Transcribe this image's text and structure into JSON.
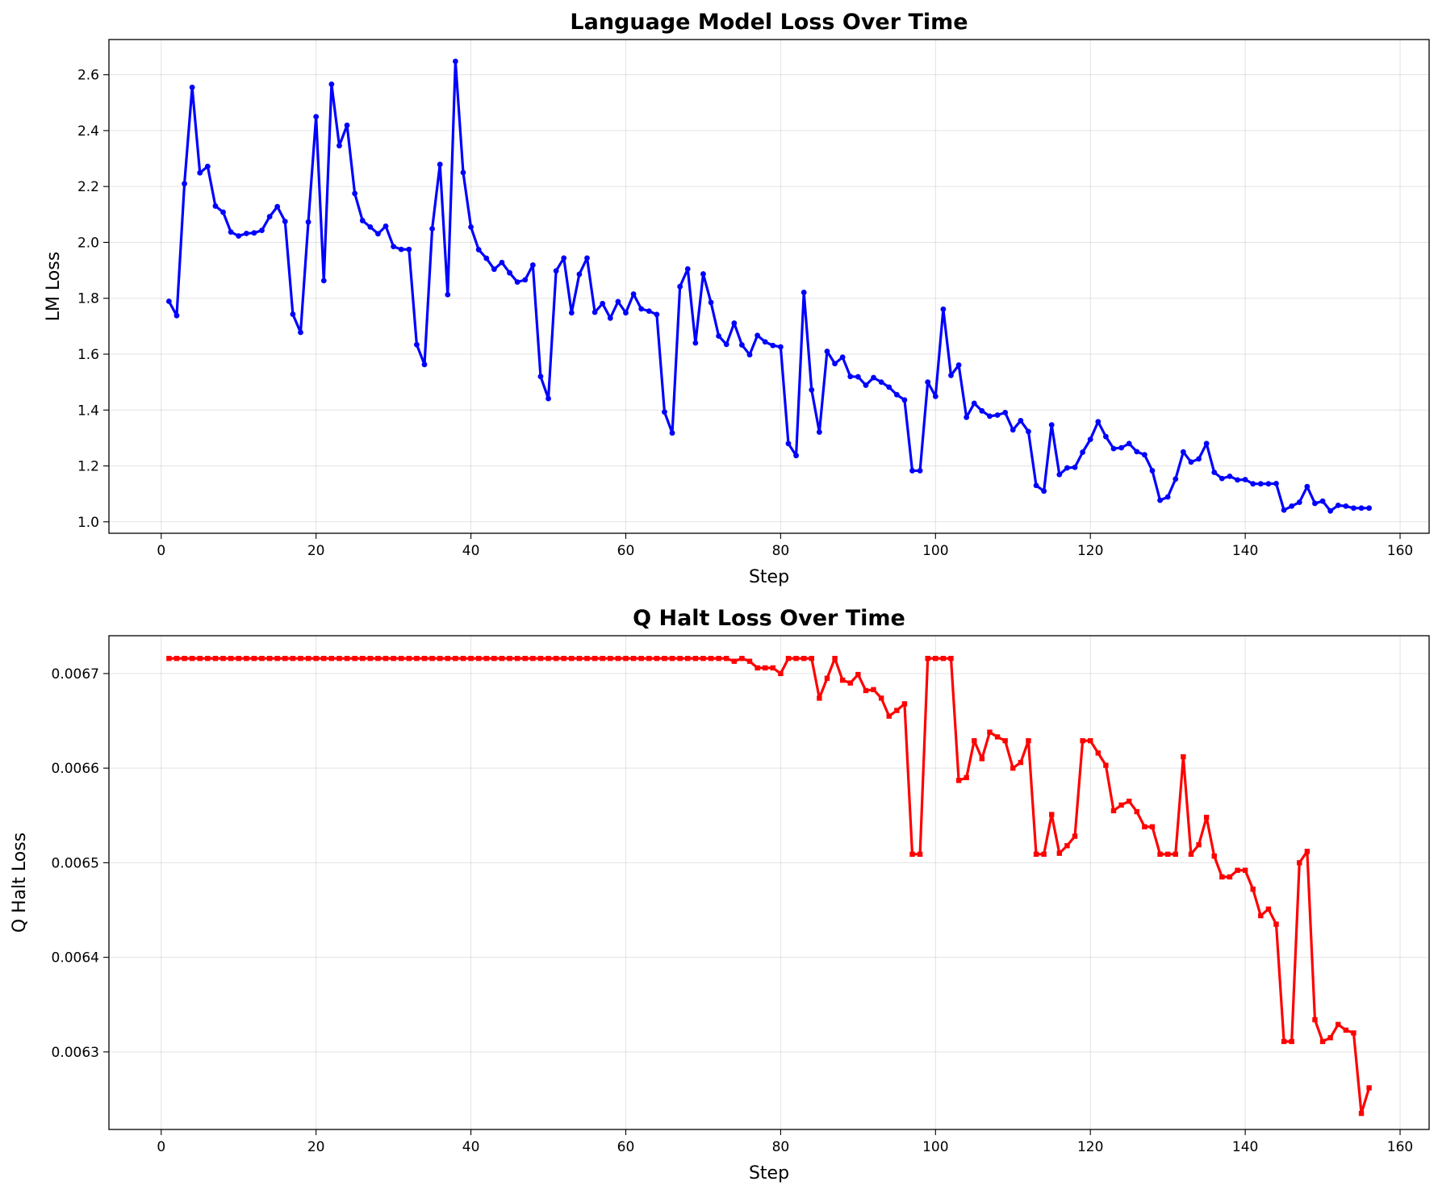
{
  "chart_data": [
    {
      "type": "line",
      "title": "Language Model Loss Over Time",
      "xlabel": "Step",
      "ylabel": "LM Loss",
      "xlim": [
        -6.75,
        163.75
      ],
      "ylim": [
        0.959,
        2.726
      ],
      "xticks": [
        0,
        20,
        40,
        60,
        80,
        100,
        120,
        140,
        160
      ],
      "yticks": [
        1.0,
        1.2,
        1.4,
        1.6,
        1.8,
        2.0,
        2.2,
        2.4,
        2.6
      ],
      "ytick_decimals": 1,
      "grid": true,
      "color": "#0000ff",
      "marker": "circle",
      "series": [
        {
          "x_start": 1,
          "values": [
            1.789,
            1.738,
            2.21,
            2.555,
            2.249,
            2.272,
            2.13,
            2.108,
            2.037,
            2.023,
            2.032,
            2.034,
            2.043,
            2.092,
            2.128,
            2.075,
            1.743,
            1.678,
            2.073,
            2.45,
            1.863,
            2.566,
            2.346,
            2.419,
            2.175,
            2.078,
            2.055,
            2.031,
            2.058,
            1.985,
            1.975,
            1.975,
            1.634,
            1.563,
            2.049,
            2.279,
            1.813,
            2.648,
            2.25,
            2.055,
            1.974,
            1.943,
            1.904,
            1.928,
            1.891,
            1.858,
            1.866,
            1.919,
            1.52,
            1.441,
            1.898,
            1.944,
            1.748,
            1.886,
            1.944,
            1.75,
            1.781,
            1.729,
            1.788,
            1.748,
            1.815,
            1.762,
            1.754,
            1.742,
            1.393,
            1.318,
            1.842,
            1.905,
            1.64,
            1.887,
            1.785,
            1.665,
            1.635,
            1.711,
            1.633,
            1.598,
            1.667,
            1.644,
            1.631,
            1.626,
            1.28,
            1.237,
            1.821,
            1.472,
            1.321,
            1.61,
            1.566,
            1.589,
            1.52,
            1.519,
            1.489,
            1.516,
            1.5,
            1.482,
            1.455,
            1.436,
            1.183,
            1.183,
            1.5,
            1.449,
            1.761,
            1.524,
            1.561,
            1.374,
            1.424,
            1.397,
            1.378,
            1.382,
            1.391,
            1.329,
            1.362,
            1.323,
            1.13,
            1.11,
            1.347,
            1.169,
            1.193,
            1.195,
            1.249,
            1.295,
            1.358,
            1.305,
            1.262,
            1.265,
            1.28,
            1.251,
            1.24,
            1.183,
            1.077,
            1.089,
            1.153,
            1.25,
            1.214,
            1.225,
            1.28,
            1.177,
            1.155,
            1.163,
            1.15,
            1.151,
            1.136,
            1.136,
            1.136,
            1.137,
            1.042,
            1.056,
            1.07,
            1.126,
            1.066,
            1.074,
            1.039,
            1.059,
            1.056,
            1.049,
            1.049,
            1.049
          ]
        }
      ]
    },
    {
      "type": "line",
      "title": "Q Halt Loss Over Time",
      "xlabel": "Step",
      "ylabel": "Q Halt Loss",
      "xlim": [
        -6.75,
        163.75
      ],
      "ylim": [
        0.006218,
        0.00674
      ],
      "xticks": [
        0,
        20,
        40,
        60,
        80,
        100,
        120,
        140,
        160
      ],
      "yticks": [
        0.0063,
        0.0064,
        0.0065,
        0.0066,
        0.0067
      ],
      "ytick_decimals": 4,
      "grid": true,
      "color": "#ff0000",
      "marker": "square",
      "series": [
        {
          "x_start": 1,
          "values": [
            0.006716,
            0.006716,
            0.006716,
            0.006716,
            0.006716,
            0.006716,
            0.006716,
            0.006716,
            0.006716,
            0.006716,
            0.006716,
            0.006716,
            0.006716,
            0.006716,
            0.006716,
            0.006716,
            0.006716,
            0.006716,
            0.006716,
            0.006716,
            0.006716,
            0.006716,
            0.006716,
            0.006716,
            0.006716,
            0.006716,
            0.006716,
            0.006716,
            0.006716,
            0.006716,
            0.006716,
            0.006716,
            0.006716,
            0.006716,
            0.006716,
            0.006716,
            0.006716,
            0.006716,
            0.006716,
            0.006716,
            0.006716,
            0.006716,
            0.006716,
            0.006716,
            0.006716,
            0.006716,
            0.006716,
            0.006716,
            0.006716,
            0.006716,
            0.006716,
            0.006716,
            0.006716,
            0.006716,
            0.006716,
            0.006716,
            0.006716,
            0.006716,
            0.006716,
            0.006716,
            0.006716,
            0.006716,
            0.006716,
            0.006716,
            0.006716,
            0.006716,
            0.006716,
            0.006716,
            0.006716,
            0.006716,
            0.006716,
            0.006716,
            0.006716,
            0.006713,
            0.006716,
            0.006713,
            0.006706,
            0.006706,
            0.006706,
            0.0067,
            0.006716,
            0.006716,
            0.006716,
            0.006716,
            0.006674,
            0.006695,
            0.006716,
            0.006693,
            0.00669,
            0.006699,
            0.006682,
            0.006683,
            0.006674,
            0.006655,
            0.006661,
            0.006668,
            0.006509,
            0.006509,
            0.006716,
            0.006716,
            0.006716,
            0.006716,
            0.006587,
            0.00659,
            0.006629,
            0.00661,
            0.006638,
            0.006633,
            0.006629,
            0.0066,
            0.006606,
            0.006629,
            0.006509,
            0.006509,
            0.006551,
            0.00651,
            0.006518,
            0.006528,
            0.006629,
            0.006629,
            0.006616,
            0.006603,
            0.006555,
            0.006561,
            0.006565,
            0.006554,
            0.006538,
            0.006538,
            0.006509,
            0.006509,
            0.006509,
            0.006612,
            0.006509,
            0.006519,
            0.006548,
            0.006507,
            0.006485,
            0.006485,
            0.006492,
            0.006492,
            0.006472,
            0.006444,
            0.006451,
            0.006435,
            0.006311,
            0.006311,
            0.0065,
            0.006512,
            0.006334,
            0.006311,
            0.006315,
            0.006329,
            0.006323,
            0.00632,
            0.006235,
            0.006262
          ]
        }
      ]
    }
  ]
}
